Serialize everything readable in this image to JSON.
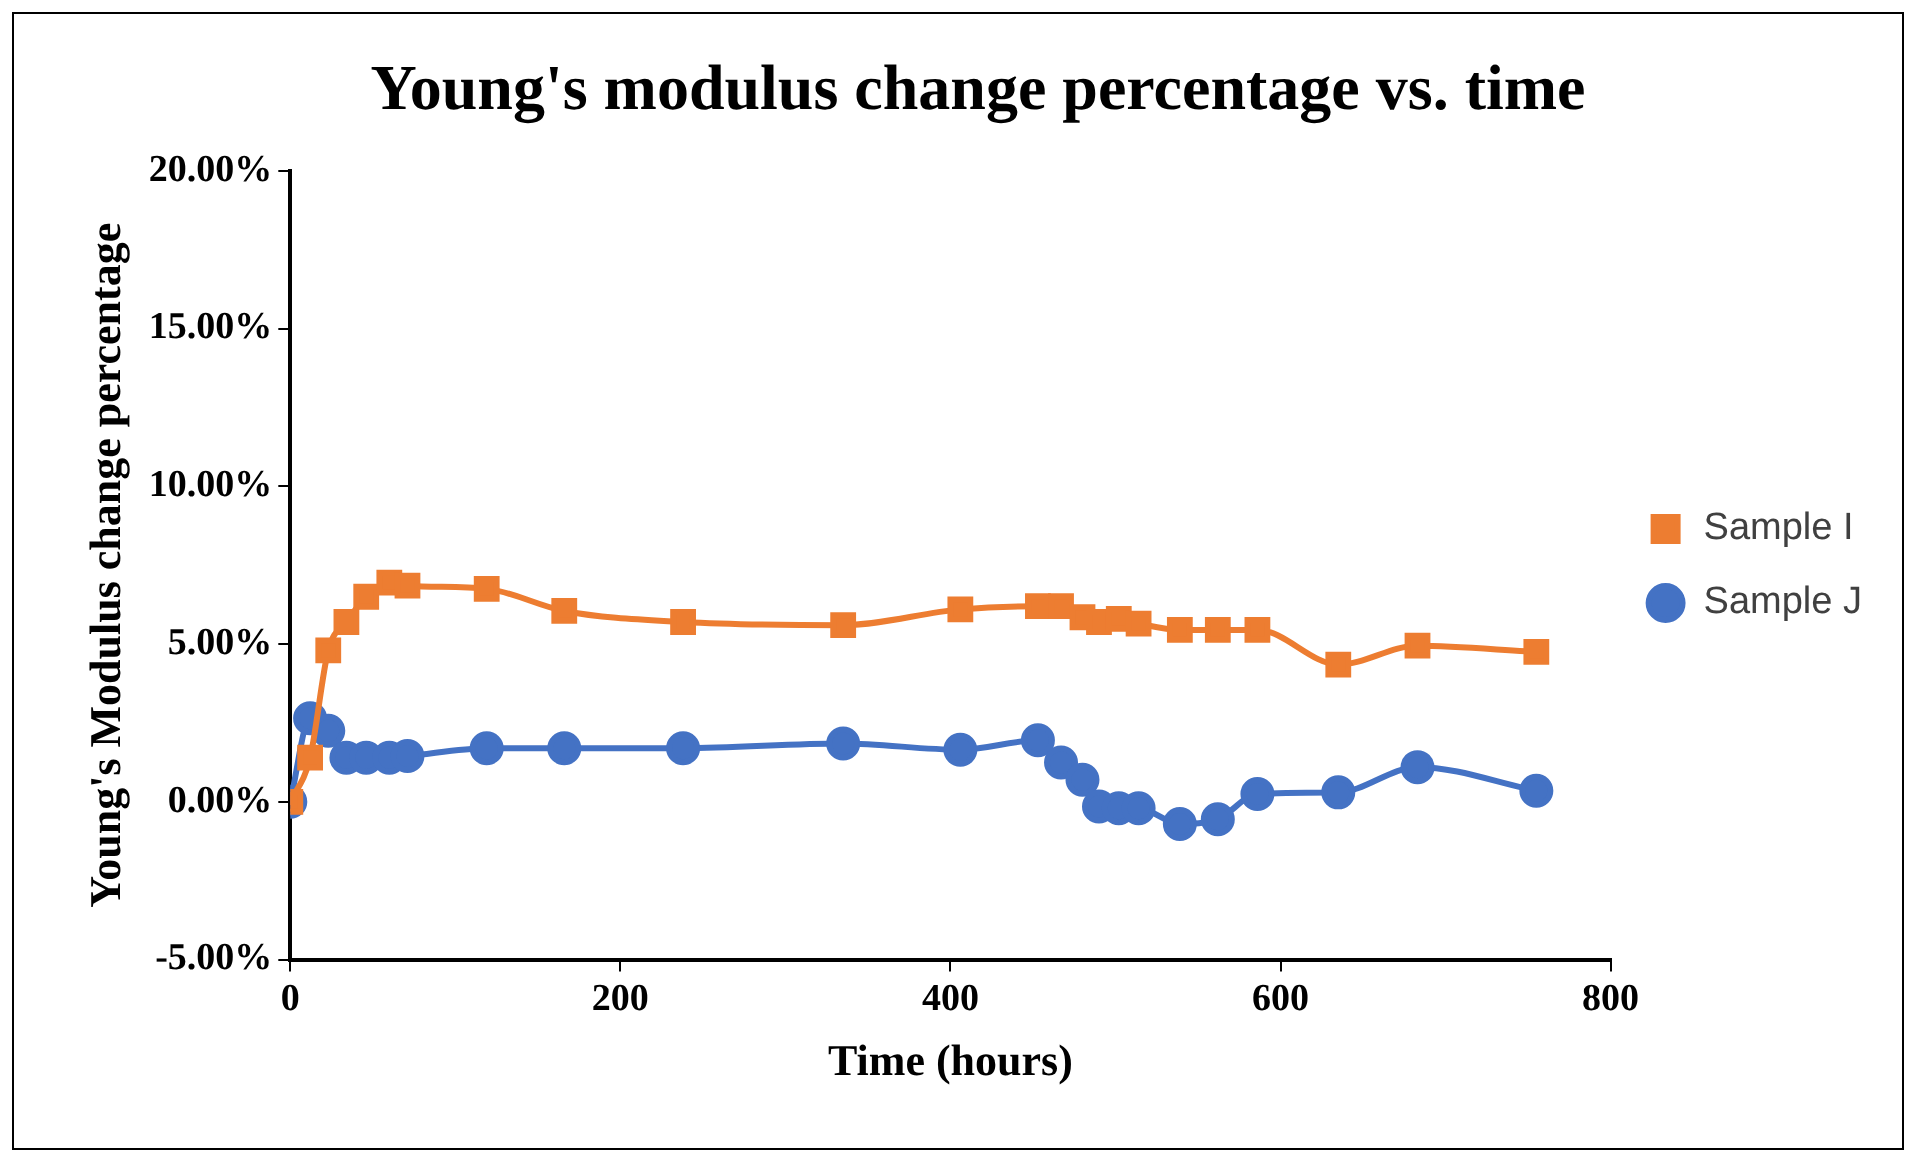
{
  "chart_data": {
    "type": "line",
    "title": "Young's modulus change percentage vs. time",
    "xlabel": "Time (hours)",
    "ylabel": "Young's Modulus change percentage",
    "x": [
      0,
      12,
      23,
      34,
      46,
      60,
      71,
      119,
      166,
      238,
      335,
      406,
      453,
      467,
      480,
      490,
      502,
      514,
      539,
      562,
      586,
      635,
      683,
      755
    ],
    "series": [
      {
        "name": "Sample I",
        "color": "#ed7d31",
        "marker": "square",
        "values": [
          0,
          1.4,
          4.8,
          5.7,
          6.5,
          6.95,
          6.85,
          6.75,
          6.05,
          5.7,
          5.6,
          6.1,
          6.2,
          6.2,
          5.85,
          5.7,
          5.8,
          5.65,
          5.45,
          5.45,
          5.45,
          4.35,
          4.95,
          4.75
        ]
      },
      {
        "name": "Sample J",
        "color": "#4472c4",
        "marker": "circle",
        "values": [
          0,
          2.65,
          2.25,
          1.4,
          1.4,
          1.4,
          1.45,
          1.7,
          1.7,
          1.7,
          1.85,
          1.65,
          1.95,
          1.25,
          0.7,
          -0.15,
          -0.2,
          -0.2,
          -0.7,
          -0.55,
          0.25,
          0.3,
          1.1,
          0.35
        ]
      }
    ],
    "xlim": [
      0,
      800
    ],
    "xticks": [
      0,
      200,
      400,
      600,
      800
    ],
    "ylim": [
      -5,
      20
    ],
    "yticks": [
      {
        "value": -5,
        "label": "-5.00%"
      },
      {
        "value": 0,
        "label": "0.00%"
      },
      {
        "value": 5,
        "label": "5.00%"
      },
      {
        "value": 10,
        "label": "10.00%"
      },
      {
        "value": 15,
        "label": "15.00%"
      },
      {
        "value": 20,
        "label": "20.00%"
      }
    ],
    "grid": false,
    "legend": "right",
    "line_style": "solid"
  }
}
